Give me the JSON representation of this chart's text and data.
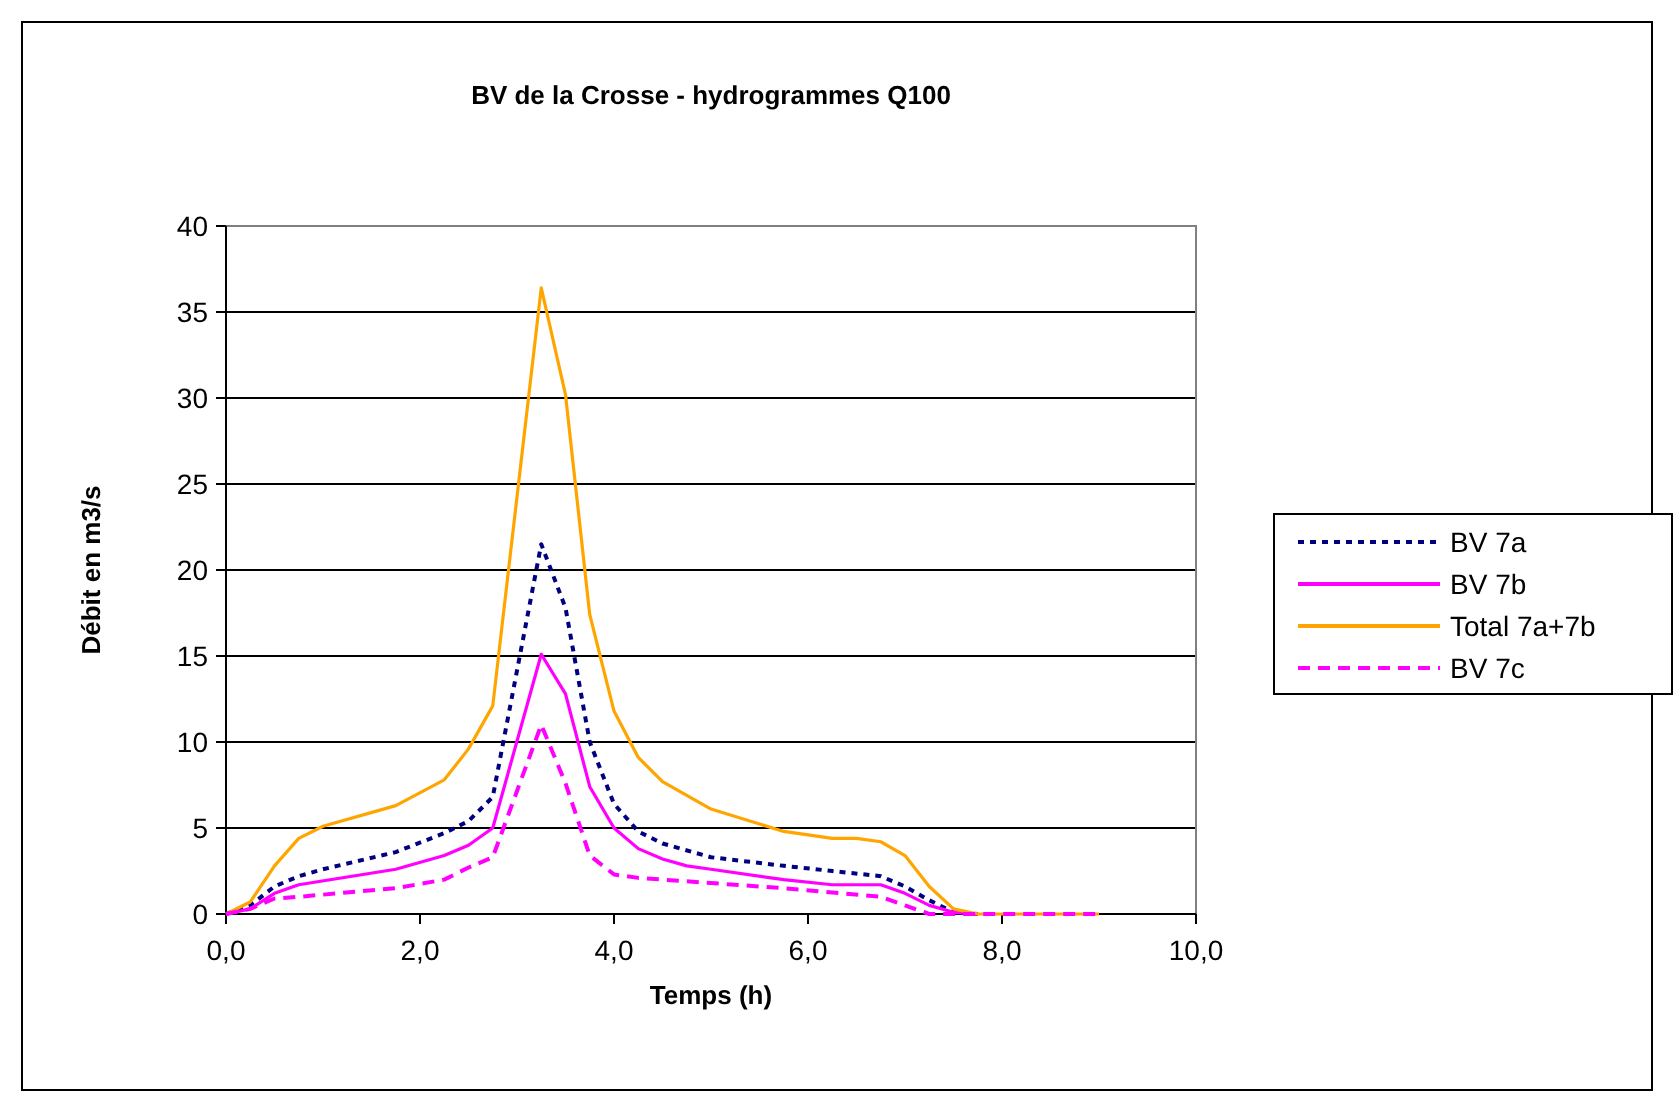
{
  "chart_data": {
    "type": "line",
    "title": "BV de la Crosse - hydrogrammes Q100",
    "xlabel": "Temps (h)",
    "ylabel": "Débit en m3/s",
    "xlim": [
      0,
      10
    ],
    "xticks": [
      {
        "value": 0,
        "label": "0,0"
      },
      {
        "value": 2,
        "label": "2,0"
      },
      {
        "value": 4,
        "label": "4,0"
      },
      {
        "value": 6,
        "label": "6,0"
      },
      {
        "value": 8,
        "label": "8,0"
      },
      {
        "value": 10,
        "label": "10,0"
      }
    ],
    "ylim": [
      0,
      40
    ],
    "yticks": [
      0,
      5,
      10,
      15,
      20,
      25,
      30,
      35,
      40
    ],
    "grid": "y",
    "legend": "right",
    "series": [
      {
        "name": "BV 7a",
        "color": "#000080",
        "line_style": "dotted",
        "x": [
          0,
          0.25,
          0.5,
          0.75,
          1.0,
          1.75,
          2.25,
          2.5,
          2.75,
          3.25,
          3.5,
          3.75,
          4.0,
          4.25,
          4.5,
          5.0,
          5.75,
          6.25,
          6.75,
          7.0,
          7.25,
          7.5,
          7.75
        ],
        "values": [
          0,
          0.5,
          1.6,
          2.2,
          2.6,
          3.6,
          4.7,
          5.4,
          6.8,
          21.5,
          17.8,
          10.0,
          6.4,
          4.8,
          4.1,
          3.3,
          2.8,
          2.5,
          2.2,
          1.6,
          0.8,
          0.1,
          0
        ]
      },
      {
        "name": "BV 7b",
        "color": "#ff00ff",
        "line_style": "solid",
        "x": [
          0,
          0.25,
          0.5,
          0.75,
          1.75,
          2.25,
          2.5,
          2.75,
          3.25,
          3.5,
          3.75,
          4.0,
          4.25,
          4.5,
          4.75,
          5.0,
          5.75,
          6.25,
          6.75,
          7.0,
          7.25,
          7.5,
          7.75
        ],
        "values": [
          0,
          0.3,
          1.2,
          1.7,
          2.6,
          3.4,
          4.0,
          5.0,
          15.1,
          12.8,
          7.4,
          5.0,
          3.8,
          3.2,
          2.8,
          2.6,
          2.0,
          1.7,
          1.7,
          1.2,
          0.5,
          0.1,
          0
        ]
      },
      {
        "name": "Total 7a+7b",
        "color": "#ffa500",
        "line_style": "solid",
        "x": [
          0,
          0.25,
          0.5,
          0.75,
          1.0,
          1.75,
          2.25,
          2.5,
          2.75,
          3.25,
          3.5,
          3.75,
          4.0,
          4.25,
          4.5,
          5.0,
          5.75,
          6.25,
          6.5,
          6.75,
          7.0,
          7.25,
          7.5,
          7.75,
          9.0
        ],
        "values": [
          0,
          0.7,
          2.8,
          4.4,
          5.1,
          6.3,
          7.8,
          9.6,
          12.1,
          36.4,
          30.2,
          17.4,
          11.8,
          9.1,
          7.7,
          6.1,
          4.8,
          4.4,
          4.4,
          4.2,
          3.4,
          1.6,
          0.3,
          0,
          0
        ]
      },
      {
        "name": "BV 7c",
        "color": "#ff00ff",
        "line_style": "dashed",
        "x": [
          0,
          0.25,
          0.5,
          0.75,
          1.75,
          2.25,
          2.5,
          2.75,
          3.25,
          3.5,
          3.75,
          4.0,
          4.25,
          5.0,
          5.75,
          6.75,
          7.0,
          7.25,
          9.0
        ],
        "values": [
          0,
          0.3,
          0.9,
          1.0,
          1.5,
          2.0,
          2.7,
          3.3,
          11.0,
          7.6,
          3.4,
          2.3,
          2.1,
          1.8,
          1.5,
          1.0,
          0.5,
          0,
          0
        ]
      }
    ]
  }
}
